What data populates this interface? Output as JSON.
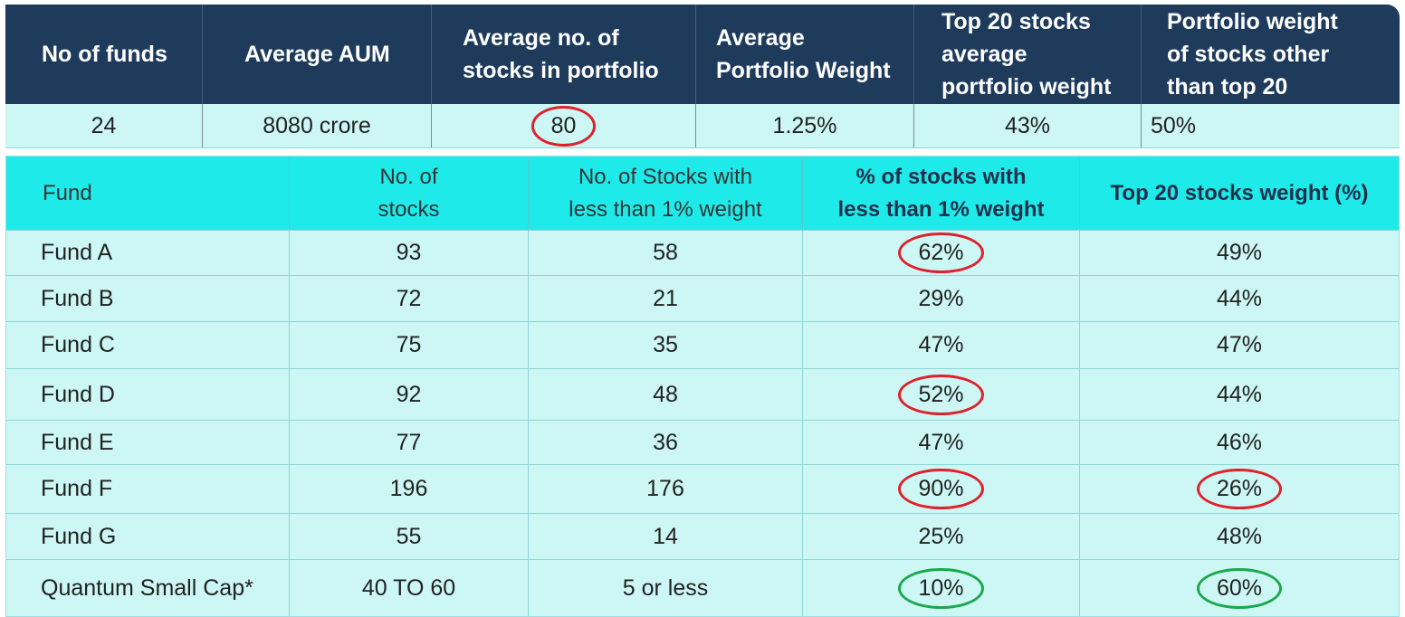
{
  "summary": {
    "headers": [
      "No of funds",
      "Average AUM",
      "Average no. of\nstocks in portfolio",
      "Average\nPortfolio Weight",
      "Top 20 stocks\naverage\nportfolio weight",
      "Portfolio weight\nof stocks other\nthan top 20"
    ],
    "values": [
      "24",
      "8080 crore",
      "80",
      "1.25%",
      "43%",
      "50%"
    ]
  },
  "table": {
    "headers": [
      "Fund",
      "No. of\nstocks",
      "No. of Stocks with\nless than 1% weight",
      "% of stocks with\nless than 1% weight",
      "Top 20 stocks weight (%)"
    ],
    "rows": [
      {
        "fund": "Fund A",
        "stocks": "93",
        "less1": "58",
        "pct": "62%",
        "top20": "49%"
      },
      {
        "fund": "Fund B",
        "stocks": "72",
        "less1": "21",
        "pct": "29%",
        "top20": "44%"
      },
      {
        "fund": "Fund C",
        "stocks": "75",
        "less1": "35",
        "pct": "47%",
        "top20": "47%"
      },
      {
        "fund": "Fund D",
        "stocks": "92",
        "less1": "48",
        "pct": "52%",
        "top20": "44%"
      },
      {
        "fund": "Fund E",
        "stocks": "77",
        "less1": "36",
        "pct": "47%",
        "top20": "46%"
      },
      {
        "fund": "Fund F",
        "stocks": "196",
        "less1": "176",
        "pct": "90%",
        "top20": "26%"
      },
      {
        "fund": "Fund G",
        "stocks": "55",
        "less1": "14",
        "pct": "25%",
        "top20": "48%"
      },
      {
        "fund": "Quantum Small Cap*",
        "stocks": "40 TO 60",
        "less1": "5 or less",
        "pct": "10%",
        "top20": "60%"
      }
    ]
  },
  "colors": {
    "header_navy": "#1f3b5c",
    "header_cyan": "#1eeaea",
    "cell_bg": "#ccf7f5",
    "circle_red": "#e0202a",
    "circle_green": "#1aa84a"
  }
}
